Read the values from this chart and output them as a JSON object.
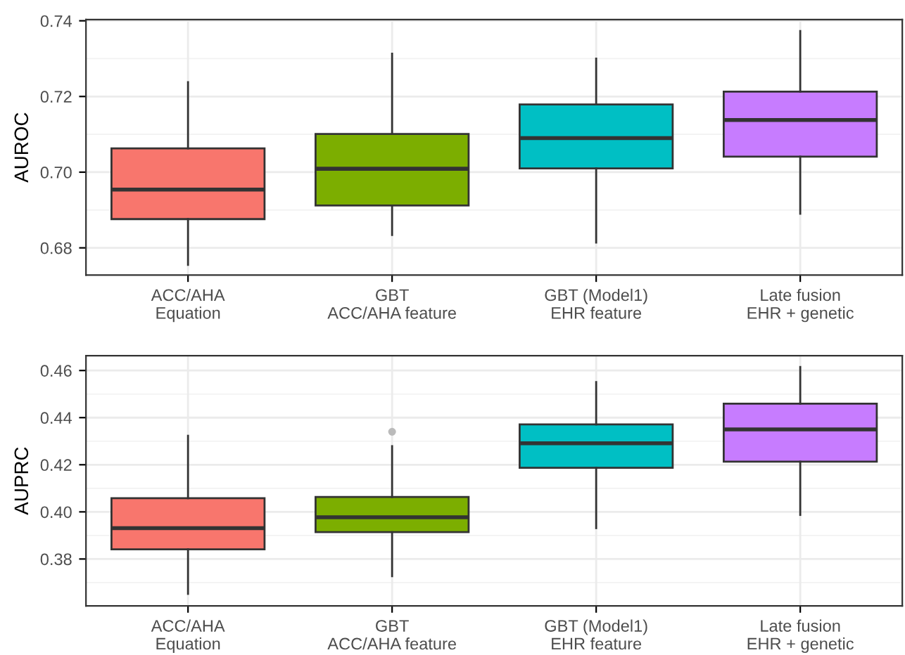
{
  "chart_data": [
    {
      "type": "box",
      "ylabel": "AUROC",
      "categories": [
        "ACC/AHA\nEquation",
        "GBT\nACC/AHA feature",
        "GBT (Model1)\nEHR feature",
        "Late fusion\nEHR + genetic"
      ],
      "colors": [
        "#f8766d",
        "#7cae00",
        "#00bfc4",
        "#c77cff"
      ],
      "boxes": [
        {
          "low": 0.6755,
          "q1": 0.6876,
          "median": 0.6954,
          "q3": 0.7063,
          "high": 0.7238
        },
        {
          "low": 0.6834,
          "q1": 0.6912,
          "median": 0.7009,
          "q3": 0.7101,
          "high": 0.7313
        },
        {
          "low": 0.6814,
          "q1": 0.701,
          "median": 0.709,
          "q3": 0.7179,
          "high": 0.73
        },
        {
          "low": 0.689,
          "q1": 0.7041,
          "median": 0.7138,
          "q3": 0.7213,
          "high": 0.7373
        }
      ],
      "ylim": [
        0.6728,
        0.7403
      ],
      "yticks": [
        {
          "value": 0.68,
          "label": "0.68"
        },
        {
          "value": 0.7,
          "label": "0.70"
        },
        {
          "value": 0.72,
          "label": "0.72"
        },
        {
          "value": 0.74,
          "label": "0.74"
        }
      ],
      "grid": true
    },
    {
      "type": "box",
      "ylabel": "AUPRC",
      "categories": [
        "ACC/AHA\nEquation",
        "GBT\nACC/AHA feature",
        "GBT (Model1)\nEHR feature",
        "Late fusion\nEHR + genetic"
      ],
      "colors": [
        "#f8766d",
        "#7cae00",
        "#00bfc4",
        "#c77cff"
      ],
      "boxes": [
        {
          "low": 0.3652,
          "q1": 0.3841,
          "median": 0.3931,
          "q3": 0.4058,
          "high": 0.4323
        },
        {
          "low": 0.3727,
          "q1": 0.3914,
          "median": 0.3977,
          "q3": 0.4063,
          "high": 0.4279,
          "outliers": [
            0.434
          ]
        },
        {
          "low": 0.3931,
          "q1": 0.4187,
          "median": 0.4291,
          "q3": 0.4371,
          "high": 0.4551
        },
        {
          "low": 0.3987,
          "q1": 0.4213,
          "median": 0.435,
          "q3": 0.4459,
          "high": 0.4615
        }
      ],
      "ylim": [
        0.3601,
        0.4663
      ],
      "yticks": [
        {
          "value": 0.38,
          "label": "0.38"
        },
        {
          "value": 0.4,
          "label": "0.40"
        },
        {
          "value": 0.42,
          "label": "0.42"
        },
        {
          "value": 0.44,
          "label": "0.44"
        },
        {
          "value": 0.46,
          "label": "0.46"
        }
      ],
      "grid": true
    }
  ]
}
